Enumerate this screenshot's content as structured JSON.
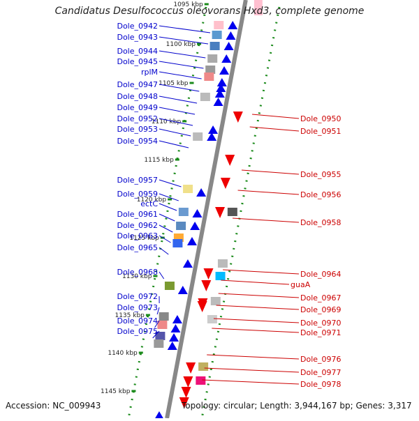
{
  "title": "Candidatus Desulfococcus oleovorans Hxd3, complete genome",
  "accession": "Accession: NC_009943",
  "topology": "Topology: circular; Length: 3,944,167 bp; Genes: 3,317",
  "colors": {
    "forward_label": "#0000cc",
    "reverse_label": "#cc0000",
    "backbone": "#888888",
    "tick": "#1a8a1a"
  },
  "ticks": [
    "1095 kbp",
    "1100 kbp",
    "1105 kbp",
    "1110 kbp",
    "1115 kbp",
    "1120 kbp",
    "1125 kbp",
    "1130 kbp",
    "1135 kbp",
    "1140 kbp",
    "1145 kbp"
  ],
  "forward_genes": [
    "Dole_0942",
    "Dole_0943",
    "Dole_0944",
    "Dole_0945",
    "rplM",
    "Dole_0947",
    "Dole_0948",
    "Dole_0949",
    "Dole_0952",
    "Dole_0953",
    "Dole_0954",
    "Dole_0957",
    "Dole_0959",
    "ectC",
    "Dole_0961",
    "Dole_0962",
    "Dole_0963",
    "Dole_0965",
    "Dole_0968",
    "Dole_0972",
    "Dole_0973",
    "Dole_0974",
    "Dole_0975"
  ],
  "reverse_genes": [
    "Dole_0950",
    "Dole_0951",
    "Dole_0955",
    "Dole_0956",
    "Dole_0958",
    "Dole_0964",
    "guaA",
    "Dole_0967",
    "Dole_0969",
    "Dole_0970",
    "Dole_0971",
    "Dole_0976",
    "Dole_0977",
    "Dole_0978"
  ]
}
